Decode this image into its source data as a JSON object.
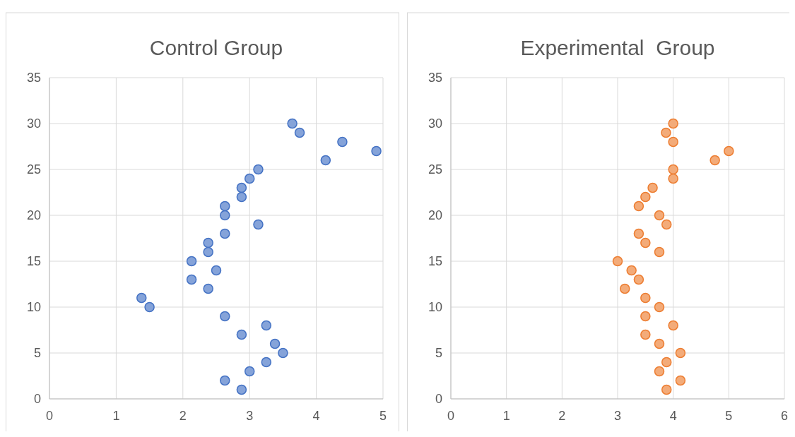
{
  "chart_data": [
    {
      "type": "scatter",
      "title": "Control Group",
      "xlim": [
        0,
        5
      ],
      "xticks": [
        0,
        1,
        2,
        3,
        4,
        5
      ],
      "ylim": [
        0,
        35
      ],
      "yticks": [
        0,
        5,
        10,
        15,
        20,
        25,
        30,
        35
      ],
      "grid": true,
      "marker": "circle",
      "series": [
        {
          "color": "#4472c4",
          "x": [
            3.64,
            3.75,
            4.39,
            4.9,
            4.14,
            3.13,
            3.0,
            2.88,
            2.88,
            2.63,
            2.63,
            3.13,
            2.63,
            2.38,
            2.38,
            2.13,
            2.5,
            2.13,
            2.38,
            1.38,
            1.5,
            2.63,
            3.25,
            2.88,
            3.38,
            3.5,
            3.25,
            3.0,
            2.63,
            2.88
          ],
          "values": [
            30,
            29,
            28,
            27,
            26,
            25,
            24,
            23,
            22,
            21,
            20,
            19,
            18,
            17,
            16,
            15,
            14,
            13,
            12,
            11,
            10,
            9,
            8,
            7,
            6,
            5,
            4,
            3,
            2,
            1
          ]
        }
      ]
    },
    {
      "type": "scatter",
      "title": "Experimental  Group",
      "xlim": [
        0,
        6
      ],
      "xticks": [
        0,
        1,
        2,
        3,
        4,
        5,
        6
      ],
      "ylim": [
        0,
        35
      ],
      "yticks": [
        0,
        5,
        10,
        15,
        20,
        25,
        30,
        35
      ],
      "grid": true,
      "marker": "circle",
      "series": [
        {
          "color": "#ed7d31",
          "x": [
            4.0,
            3.87,
            4.0,
            5.0,
            4.75,
            4.0,
            4.0,
            3.63,
            3.5,
            3.38,
            3.75,
            3.88,
            3.38,
            3.5,
            3.75,
            3.0,
            3.25,
            3.38,
            3.13,
            3.5,
            3.75,
            3.5,
            4.0,
            3.5,
            3.75,
            4.13,
            3.88,
            3.75,
            4.13,
            3.88
          ],
          "values": [
            30,
            29,
            28,
            27,
            26,
            25,
            24,
            23,
            22,
            21,
            20,
            19,
            18,
            17,
            16,
            15,
            14,
            13,
            12,
            11,
            10,
            9,
            8,
            7,
            6,
            5,
            4,
            3,
            2,
            1
          ]
        }
      ]
    }
  ]
}
